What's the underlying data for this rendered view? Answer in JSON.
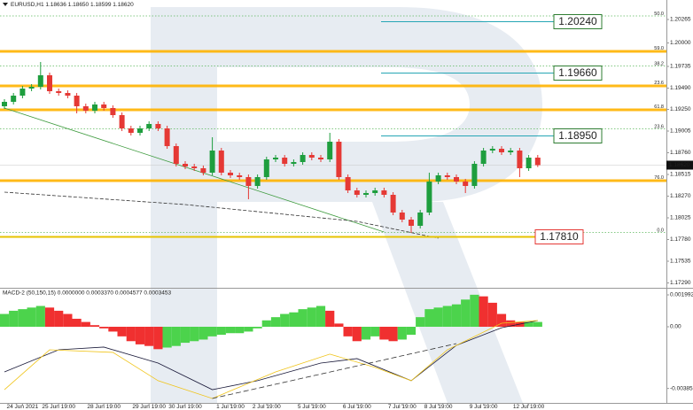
{
  "chart_data": {
    "type": "candlestick",
    "title": "EURUSD,H1  1.18636 1.18650 1.18599 1.18620",
    "categories": [
      null,
      null,
      "24 Jun 2021",
      null,
      null,
      null,
      "25 Jun 19:00",
      null,
      null,
      null,
      null,
      "28 Jun 19:00",
      null,
      null,
      null,
      null,
      "29 Jun 19:00",
      null,
      null,
      null,
      "30 Jun 19:00",
      null,
      null,
      null,
      null,
      "1 Jul 19:00",
      null,
      null,
      null,
      "2 Jul 19:00",
      null,
      null,
      null,
      null,
      "5 Jul 19:00",
      null,
      null,
      null,
      null,
      "6 Jul 19:00",
      null,
      null,
      null,
      null,
      "7 Jul 19:00",
      null,
      null,
      null,
      "8 Jul 19:00",
      null,
      null,
      null,
      null,
      "9 Jul 19:00",
      null,
      null,
      null,
      null,
      "12 Jul 19:00",
      null
    ],
    "open": [
      1.19285,
      1.19335,
      1.19405,
      1.19485,
      1.19505,
      1.19635,
      1.19455,
      1.19435,
      1.19405,
      1.19285,
      1.19235,
      1.19305,
      1.19265,
      1.19185,
      1.19035,
      1.18985,
      1.19035,
      1.19085,
      1.19035,
      1.18835,
      1.18635,
      1.18605,
      1.18585,
      1.18535,
      1.18785,
      1.18535,
      1.18505,
      1.18485,
      1.18385,
      1.18485,
      1.18685,
      1.18705,
      1.18635,
      1.18655,
      1.18735,
      1.18705,
      1.18685,
      1.18885,
      1.18485,
      1.18335,
      1.18285,
      1.18305,
      1.18335,
      1.18285,
      1.18085,
      1.18005,
      1.17935,
      1.18085,
      1.18435,
      1.18505,
      1.18485,
      1.18435,
      1.18385,
      1.18635,
      1.18785,
      1.18805,
      1.18765,
      1.18785,
      1.18585,
      1.18705
    ],
    "high": [
      1.19365,
      1.19435,
      1.19515,
      1.19535,
      1.19785,
      1.19665,
      1.19485,
      1.19465,
      1.19435,
      1.19315,
      1.19335,
      1.19335,
      1.19295,
      1.19215,
      1.19065,
      1.19065,
      1.19115,
      1.19115,
      1.19065,
      1.18865,
      1.18665,
      1.18635,
      1.18615,
      1.18935,
      1.18815,
      1.18565,
      1.18535,
      1.18515,
      1.18515,
      1.18715,
      1.18735,
      1.18735,
      1.18685,
      1.18765,
      1.18765,
      1.18735,
      1.18985,
      1.18915,
      1.18515,
      1.18365,
      1.18335,
      1.18365,
      1.18365,
      1.18315,
      1.18115,
      1.18035,
      1.18115,
      1.18535,
      1.18535,
      1.18535,
      1.18515,
      1.18465,
      1.18665,
      1.18815,
      1.18835,
      1.18835,
      1.18815,
      1.18815,
      1.18735,
      1.18735
    ],
    "low": [
      1.19255,
      1.19305,
      1.19375,
      1.19455,
      1.19475,
      1.19425,
      1.19405,
      1.19375,
      1.19205,
      1.19205,
      1.19205,
      1.19235,
      1.19155,
      1.19005,
      1.18955,
      1.18955,
      1.19005,
      1.19005,
      1.18805,
      1.18605,
      1.18575,
      1.18555,
      1.18505,
      1.18505,
      1.18505,
      1.18475,
      1.18455,
      1.18235,
      1.18355,
      1.18455,
      1.18655,
      1.18605,
      1.18605,
      1.18625,
      1.18675,
      1.18655,
      1.18655,
      1.18455,
      1.18305,
      1.18255,
      1.18255,
      1.18275,
      1.18255,
      1.18055,
      1.17975,
      1.17855,
      1.17905,
      1.18055,
      1.18405,
      1.18455,
      1.18405,
      1.18305,
      1.18355,
      1.18605,
      1.18755,
      1.18735,
      1.18735,
      1.18485,
      1.18555,
      1.18599
    ],
    "close": [
      1.19335,
      1.19405,
      1.19485,
      1.19505,
      1.19635,
      1.19455,
      1.19435,
      1.19405,
      1.19285,
      1.19235,
      1.19305,
      1.19265,
      1.19185,
      1.19035,
      1.18985,
      1.19035,
      1.19085,
      1.19035,
      1.18835,
      1.18635,
      1.18605,
      1.18585,
      1.18535,
      1.18785,
      1.18535,
      1.18505,
      1.18485,
      1.18385,
      1.18485,
      1.18685,
      1.18705,
      1.18635,
      1.18655,
      1.18735,
      1.18705,
      1.18685,
      1.18885,
      1.18485,
      1.18335,
      1.18285,
      1.18305,
      1.18335,
      1.18285,
      1.18085,
      1.18005,
      1.17935,
      1.18085,
      1.18435,
      1.18505,
      1.18485,
      1.18435,
      1.18385,
      1.18635,
      1.18785,
      1.18805,
      1.18765,
      1.18785,
      1.18585,
      1.18705,
      1.1862
    ],
    "up_color": "#1e9e3e",
    "down_color": "#e53935",
    "ylim": [
      1.17235,
      1.20485
    ],
    "yticks": [
      1.20265,
      {
        "value": 1.2,
        "label": "1.20000"
      },
      1.19735,
      {
        "value": 1.1949,
        "label": "1.19490"
      },
      {
        "value": 1.1925,
        "label": "1.19250"
      },
      1.19005,
      {
        "value": 1.1876,
        "label": "1.18760"
      },
      1.18515,
      {
        "value": 1.1827,
        "label": "1.18270"
      },
      1.18025,
      {
        "value": 1.1778,
        "label": "1.17780"
      },
      1.17535,
      {
        "value": 1.1729,
        "label": "1.17290"
      }
    ],
    "levels": [
      {
        "label": "59.0",
        "value": 1.19905
      },
      {
        "label": "23.6",
        "value": 1.19515
      },
      {
        "label": "61.8",
        "value": 1.19245
      },
      {
        "label": "76.0",
        "value": 1.18445
      }
    ],
    "level_color": "#ffb300",
    "fib_levels": [
      {
        "label": "50.0",
        "value": 1.20305
      },
      {
        "label": "38.2",
        "value": 1.1974
      },
      {
        "label": "23.6",
        "value": 1.1903
      },
      {
        "label": "0.0",
        "value": 1.1786
      }
    ],
    "fib_color": "#5cb85c",
    "targets": [
      {
        "value": 1.2024,
        "label": "1.20240",
        "color": "#2e7d32"
      },
      {
        "value": 1.1966,
        "label": "1.19660",
        "color": "#2e7d32"
      },
      {
        "value": 1.1895,
        "label": "1.18950",
        "color": "#2e7d32"
      },
      {
        "value": 1.1781,
        "label": "1.17810",
        "color": "#e53935"
      }
    ],
    "current_price": {
      "value": 1.1862,
      "label": "1.18620"
    },
    "trendline": {
      "x": [
        0,
        42
      ],
      "values": [
        1.19265,
        1.17865
      ],
      "color": "#3c9a3c"
    },
    "moving_average": {
      "x": [
        0,
        20,
        39,
        48
      ],
      "values": [
        1.18315,
        1.18175,
        1.17985,
        1.17795
      ],
      "color": "#333333"
    },
    "macd": {
      "title": "MACD-2 (50,150,15) 0.0000000 0.0003370 0.0004577 0.0003453",
      "values": [
        0.0008,
        0.001,
        0.0011,
        0.0012,
        0.0013,
        0.0012,
        0.001,
        0.0008,
        0.0005,
        0.0003,
        0.0001,
        -0.0001,
        -0.0003,
        -0.0006,
        -0.0009,
        -0.0011,
        -0.0012,
        -0.0014,
        -0.0013,
        -0.0012,
        -0.001,
        -0.0009,
        -0.0008,
        -0.0006,
        -0.0005,
        -0.0004,
        -0.0004,
        -0.0003,
        -0.0001,
        0.0004,
        0.0006,
        0.0008,
        0.0009,
        0.0011,
        0.0012,
        0.0013,
        0.001,
        0.0002,
        -0.0006,
        -0.0009,
        -0.0008,
        -0.0006,
        -0.0008,
        -0.0009,
        -0.0008,
        -0.0005,
        0.0006,
        0.0011,
        0.0012,
        0.0013,
        0.0014,
        0.0017,
        0.002,
        0.0019,
        0.0015,
        0.0008,
        0.0004,
        0.0003,
        0.0003,
        0.0003
      ],
      "up_color": "#4cd34c",
      "down_color": "#f03030",
      "lines": [
        {
          "color": "#1a1a3a",
          "x": [
            0,
            6,
            11,
            17,
            23,
            28,
            35,
            39,
            45,
            50,
            55,
            59
          ],
          "values": [
            -0.00282,
            -0.00144,
            -0.00127,
            -0.00227,
            -0.00393,
            -0.00337,
            -0.00227,
            -0.00199,
            -0.00337,
            -0.00116,
            -6e-05,
            0.00039
          ]
        },
        {
          "color": "#f0c419",
          "x": [
            0,
            5,
            12,
            17,
            23,
            30,
            36,
            41,
            45,
            49,
            55,
            59
          ],
          "values": [
            -0.00393,
            -0.00144,
            -0.0016,
            -0.00337,
            -0.00448,
            -0.00282,
            -0.00171,
            -0.00254,
            -0.00337,
            -0.00144,
            0.00022,
            0.00039
          ]
        }
      ],
      "trendline": {
        "x": [
          23,
          50
        ],
        "values": [
          -0.00448,
          -0.00105
        ],
        "color": "#333333"
      },
      "ylim": [
        -0.004758,
        0.002324
      ],
      "yticks": [
        0.001992,
        {
          "value": 0,
          "label": "0.00"
        },
        -0.003853
      ]
    }
  }
}
